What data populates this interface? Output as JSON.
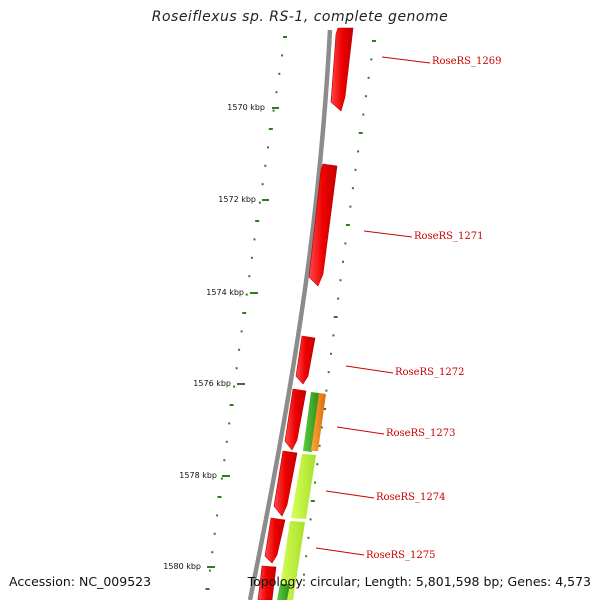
{
  "header": {
    "title": "Roseiflexus sp. RS-1, complete genome"
  },
  "footer": {
    "accession": "Accession: NC_009523",
    "summary": "Topology: circular; Length: 5,801,598 bp; Genes: 4,573"
  },
  "colors": {
    "backbone": "#8c8c8c",
    "tick": "#2e7d1e",
    "gene_red": "#ee0000",
    "gene_green": "#3fae2a",
    "gene_lime": "#bef034",
    "gene_orange": "#f08a1c",
    "label": "#cc0000"
  },
  "scale": {
    "tick_labels": [
      "1570 kbp",
      "1572 kbp",
      "1574 kbp",
      "1576 kbp",
      "1578 kbp",
      "1580 kbp"
    ]
  },
  "genes": [
    {
      "label": "RoseRS_1269"
    },
    {
      "label": "RoseRS_1271"
    },
    {
      "label": "RoseRS_1272"
    },
    {
      "label": "RoseRS_1273"
    },
    {
      "label": "RoseRS_1274"
    },
    {
      "label": "RoseRS_1275"
    }
  ]
}
